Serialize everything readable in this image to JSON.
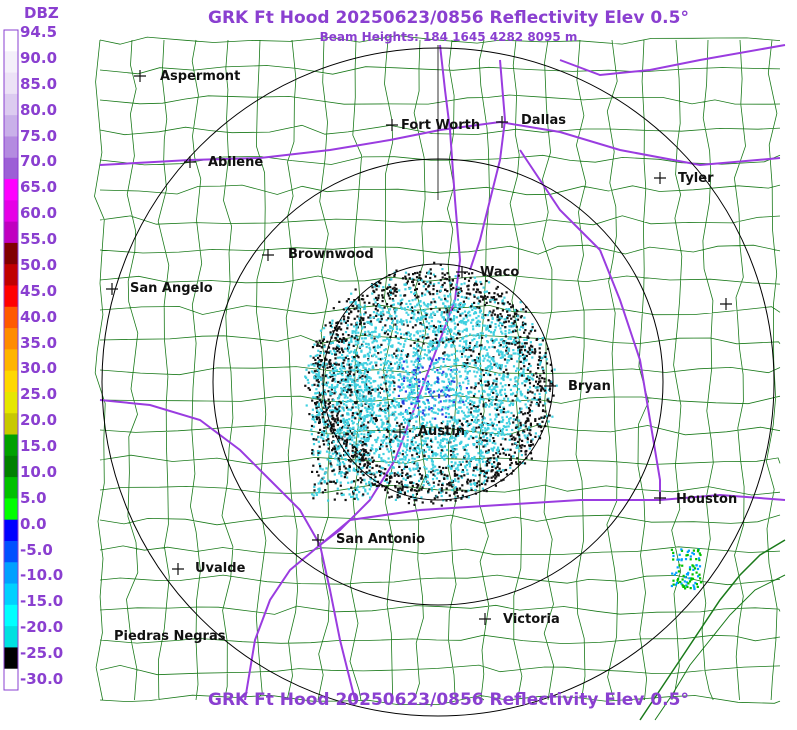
{
  "header": {
    "title": "GRK Ft Hood 20250623/0856 Reflectivity Elev 0.5°",
    "subtitle": "Beam Heights: 184 1645 4282 8095 m",
    "footer_title": "GRK Ft Hood 20250623/0856 Reflectivity Elev 0.5°"
  },
  "legend": {
    "unit": "DBZ",
    "ticks": [
      "94.5",
      "90.0",
      "85.0",
      "80.0",
      "75.0",
      "70.0",
      "65.0",
      "60.0",
      "55.0",
      "50.0",
      "45.0",
      "40.0",
      "35.0",
      "30.0",
      "25.0",
      "20.0",
      "15.0",
      "10.0",
      "5.0",
      "0.0",
      "-5.0",
      "-10.0",
      "-15.0",
      "-20.0",
      "-25.0",
      "-30.0"
    ],
    "colors": [
      "#ffffff",
      "#f4f0fa",
      "#ece2f6",
      "#dccbf0",
      "#c9b0e9",
      "#b48be0",
      "#9c5fd6",
      "#ff00ff",
      "#e600e6",
      "#c000c0",
      "#800000",
      "#c00000",
      "#ff0000",
      "#ff5a00",
      "#ff8c00",
      "#ffb400",
      "#ffd700",
      "#e6e600",
      "#c8c800",
      "#00a000",
      "#008000",
      "#00c000",
      "#00ff00",
      "#0000ff",
      "#0050ff",
      "#00a0ff",
      "#00d0ff",
      "#00ffff",
      "#00e0e0",
      "#000000",
      "#ffffff"
    ]
  },
  "map": {
    "radar_site": "GRK",
    "colors": {
      "county_lines": "#1a7a1a",
      "interstates": "#9a3ce0",
      "range_rings": "#000000",
      "echo_light": "#40d0e0",
      "echo_dark": "#111111",
      "echo_blue": "#2a40e0"
    },
    "cities": [
      {
        "name": "Aspermont"
      },
      {
        "name": "Fort Worth"
      },
      {
        "name": "Dallas"
      },
      {
        "name": "Abilene"
      },
      {
        "name": "Tyler"
      },
      {
        "name": "Brownwood"
      },
      {
        "name": "Waco"
      },
      {
        "name": "San Angelo"
      },
      {
        "name": "Bryan"
      },
      {
        "name": "Austin"
      },
      {
        "name": "Houston"
      },
      {
        "name": "San Antonio"
      },
      {
        "name": "Uvalde"
      },
      {
        "name": "Victoria"
      },
      {
        "name": "Piedras Negras"
      }
    ]
  }
}
